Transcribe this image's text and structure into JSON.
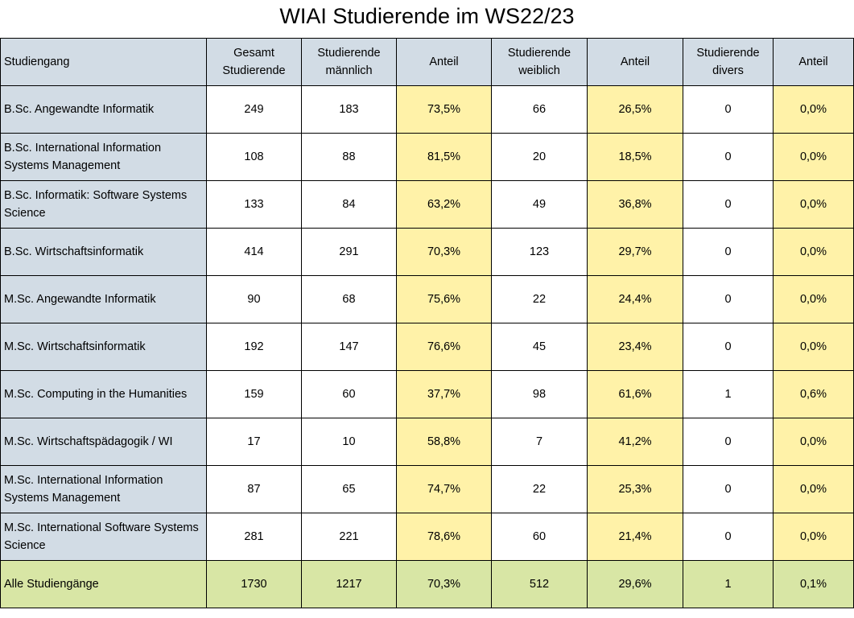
{
  "title": "WIAI Studierende im WS22/23",
  "colors": {
    "header_bg": "#d2dce5",
    "program_bg": "#d2dce5",
    "share_bg": "#fff2a8",
    "total_bg": "#d8e6a5"
  },
  "headers": [
    "Studiengang",
    "Gesamt Studierende",
    "Studierende männlich",
    "Anteil",
    "Studierende weiblich",
    "Anteil",
    "Studierende divers",
    "Anteil"
  ],
  "rows": [
    [
      "B.Sc. Angewandte Informatik",
      "249",
      "183",
      "73,5%",
      "66",
      "26,5%",
      "0",
      "0,0%"
    ],
    [
      "B.Sc. International Information Systems Management",
      "108",
      "88",
      "81,5%",
      "20",
      "18,5%",
      "0",
      "0,0%"
    ],
    [
      "B.Sc. Informatik: Software Systems Science",
      "133",
      "84",
      "63,2%",
      "49",
      "36,8%",
      "0",
      "0,0%"
    ],
    [
      "B.Sc. Wirtschaftsinformatik",
      "414",
      "291",
      "70,3%",
      "123",
      "29,7%",
      "0",
      "0,0%"
    ],
    [
      "M.Sc. Angewandte Informatik",
      "90",
      "68",
      "75,6%",
      "22",
      "24,4%",
      "0",
      "0,0%"
    ],
    [
      "M.Sc. Wirtschaftsinformatik",
      "192",
      "147",
      "76,6%",
      "45",
      "23,4%",
      "0",
      "0,0%"
    ],
    [
      "M.Sc. Computing in the Humanities",
      "159",
      "60",
      "37,7%",
      "98",
      "61,6%",
      "1",
      "0,6%"
    ],
    [
      "M.Sc. Wirtschaftspädagogik / WI",
      "17",
      "10",
      "58,8%",
      "7",
      "41,2%",
      "0",
      "0,0%"
    ],
    [
      "M.Sc. International Information Systems Management",
      "87",
      "65",
      "74,7%",
      "22",
      "25,3%",
      "0",
      "0,0%"
    ],
    [
      "M.Sc. International Software Systems Science",
      "281",
      "221",
      "78,6%",
      "60",
      "21,4%",
      "0",
      "0,0%"
    ]
  ],
  "total": [
    "Alle Studiengänge",
    "1730",
    "1217",
    "70,3%",
    "512",
    "29,6%",
    "1",
    "0,1%"
  ]
}
